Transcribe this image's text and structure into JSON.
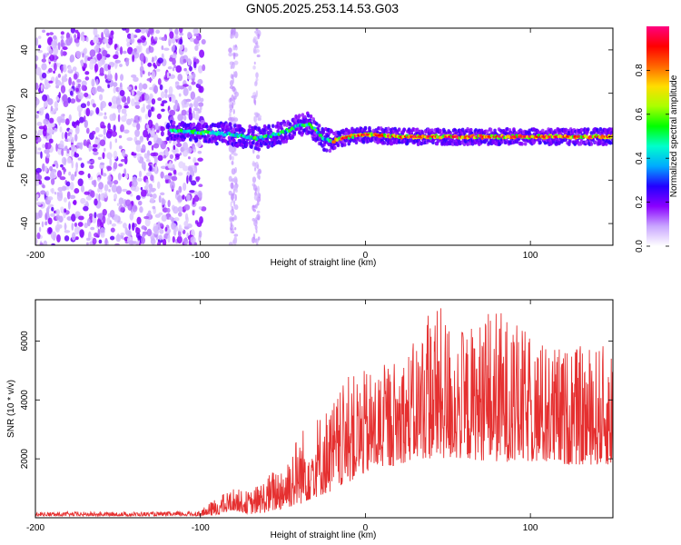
{
  "chart_data": [
    {
      "type": "heatmap",
      "title": "GN05.2025.253.14.53.G03",
      "xlabel": "Height of straight line (km)",
      "ylabel": "Frequency (Hz)",
      "xlim": [
        -200,
        150
      ],
      "ylim": [
        -50,
        50
      ],
      "x_ticks": [
        -200,
        -100,
        0,
        100
      ],
      "x_tick_labels": [
        "-200",
        "-100",
        "0",
        "100"
      ],
      "y_ticks": [
        -40,
        -20,
        0,
        20,
        40
      ],
      "y_tick_labels": [
        "-40",
        "-20",
        "0",
        "20",
        "40"
      ],
      "colorbar": {
        "label": "Normalized spectral amplitude",
        "range": [
          0,
          1
        ],
        "ticks": [
          0.0,
          0.2,
          0.4,
          0.6,
          0.8
        ],
        "tick_labels": [
          "0.0",
          "0.2",
          "0.4",
          "0.6",
          "0.8"
        ],
        "colors": [
          "#ffffff",
          "#c9a6ff",
          "#8a00ff",
          "#2200ff",
          "#00aaff",
          "#00ffcc",
          "#00ff00",
          "#aaff00",
          "#ffdd00",
          "#ff6600",
          "#ff0000",
          "#ff0080"
        ]
      },
      "features": {
        "noise_region_x": [
          -200,
          -100
        ],
        "faint_streaks_x": [
          -85,
          -65
        ],
        "signal_ridge": {
          "x": [
            -120,
            -100,
            -80,
            -65,
            -50,
            -40,
            -35,
            -30,
            -25,
            -20,
            -10,
            0,
            20,
            50,
            100,
            150
          ],
          "frequency": [
            3,
            2,
            1,
            -1,
            2,
            5,
            6,
            3,
            -1,
            -2,
            0,
            1,
            0,
            0,
            0,
            0
          ]
        }
      }
    },
    {
      "type": "line",
      "xlabel": "Height of straight line (km)",
      "ylabel": "SNR (10 * v/v)",
      "xlim": [
        -200,
        150
      ],
      "ylim": [
        0,
        7400
      ],
      "x_ticks": [
        -200,
        -100,
        0,
        100
      ],
      "x_tick_labels": [
        "-200",
        "-100",
        "0",
        "100"
      ],
      "y_ticks": [
        2000,
        4000,
        6000
      ],
      "y_tick_labels": [
        "2000",
        "4000",
        "6000"
      ],
      "line_color": "#e53030",
      "envelope": {
        "x": [
          -200,
          -120,
          -100,
          -90,
          -80,
          -70,
          -60,
          -50,
          -40,
          -30,
          -20,
          -10,
          0,
          10,
          20,
          30,
          40,
          60,
          80,
          100,
          120,
          150
        ],
        "low": [
          60,
          60,
          60,
          80,
          250,
          120,
          180,
          300,
          450,
          700,
          900,
          1200,
          1500,
          1700,
          1800,
          2000,
          2000,
          2000,
          1900,
          1900,
          1800,
          1800
        ],
        "high": [
          200,
          200,
          250,
          700,
          1000,
          900,
          1400,
          2000,
          3000,
          3500,
          4000,
          4800,
          5000,
          5200,
          5500,
          6000,
          7400,
          6400,
          7200,
          6200,
          5800,
          5900
        ]
      }
    }
  ]
}
